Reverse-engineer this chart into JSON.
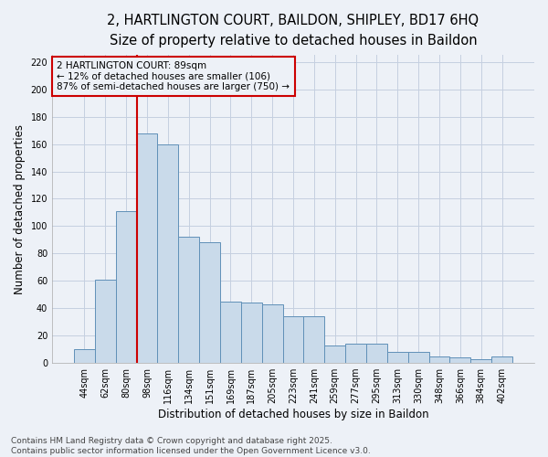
{
  "title_line1": "2, HARTLINGTON COURT, BAILDON, SHIPLEY, BD17 6HQ",
  "title_line2": "Size of property relative to detached houses in Baildon",
  "xlabel": "Distribution of detached houses by size in Baildon",
  "ylabel": "Number of detached properties",
  "categories": [
    "44sqm",
    "62sqm",
    "80sqm",
    "98sqm",
    "116sqm",
    "134sqm",
    "151sqm",
    "169sqm",
    "187sqm",
    "205sqm",
    "223sqm",
    "241sqm",
    "259sqm",
    "277sqm",
    "295sqm",
    "313sqm",
    "330sqm",
    "348sqm",
    "366sqm",
    "384sqm",
    "402sqm"
  ],
  "values": [
    10,
    61,
    111,
    168,
    160,
    92,
    88,
    45,
    44,
    43,
    34,
    34,
    13,
    14,
    14,
    8,
    8,
    5,
    4,
    3,
    5
  ],
  "bar_color": "#c9daea",
  "bar_edge_color": "#6090b8",
  "grid_color": "#c5cfe0",
  "background_color": "#edf1f7",
  "annotation_text": "2 HARTLINGTON COURT: 89sqm\n← 12% of detached houses are smaller (106)\n87% of semi-detached houses are larger (750) →",
  "ylim": [
    0,
    225
  ],
  "yticks": [
    0,
    20,
    40,
    60,
    80,
    100,
    120,
    140,
    160,
    180,
    200,
    220
  ],
  "footnote": "Contains HM Land Registry data © Crown copyright and database right 2025.\nContains public sector information licensed under the Open Government Licence v3.0.",
  "annotation_box_color": "#cc0000",
  "title_fontsize": 10.5,
  "subtitle_fontsize": 9.5,
  "axis_label_fontsize": 8.5,
  "tick_fontsize": 7,
  "footnote_fontsize": 6.5,
  "annotation_fontsize": 7.5
}
